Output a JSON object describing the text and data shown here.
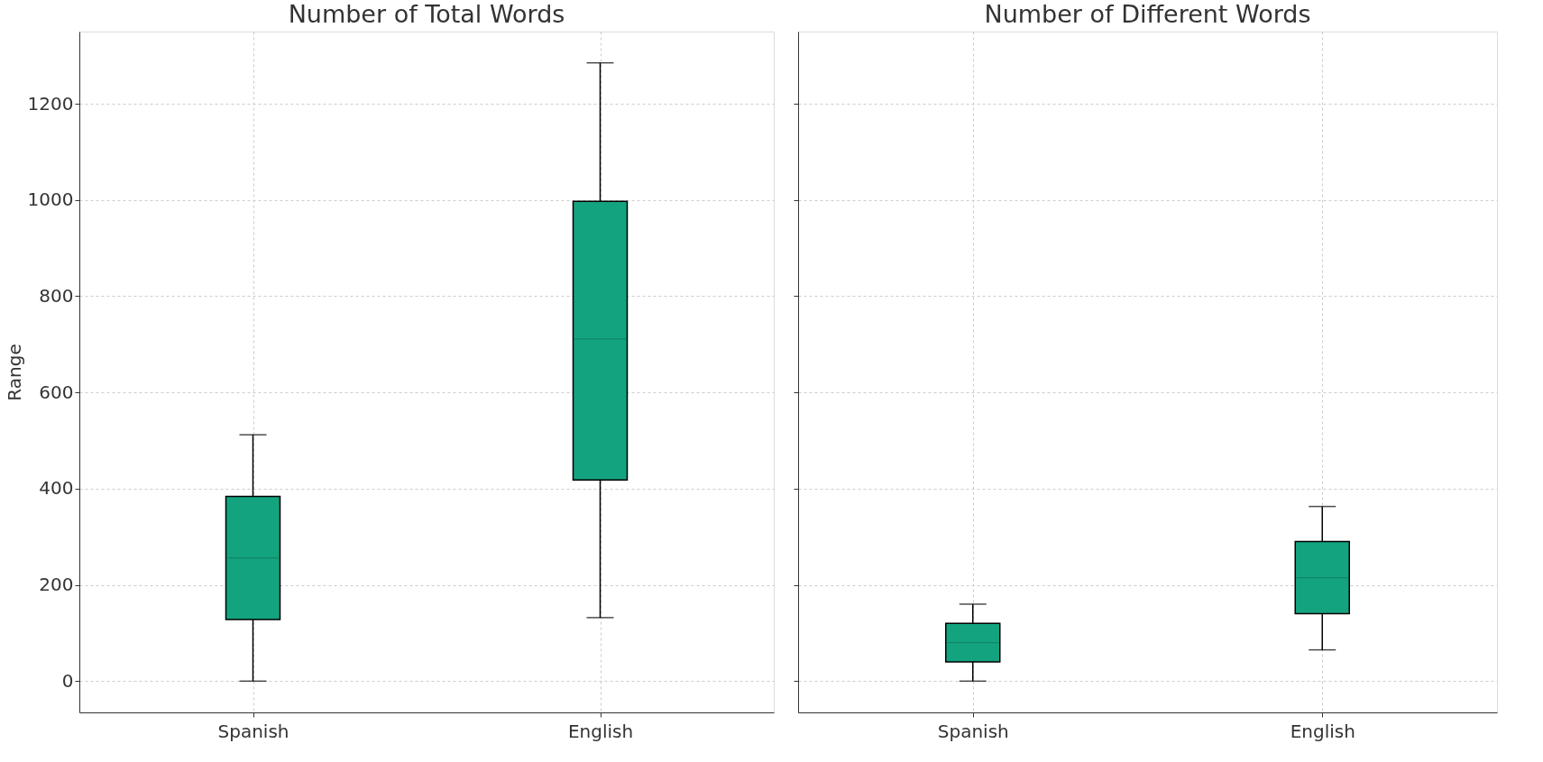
{
  "chart_data": [
    {
      "type": "box",
      "title": "Number of Total Words",
      "ylabel": "Range",
      "categories": [
        "Spanish",
        "English"
      ],
      "ylim": [
        -65,
        1350
      ],
      "yticks": [
        0,
        200,
        400,
        600,
        800,
        1000,
        1200
      ],
      "grid": true,
      "series": [
        {
          "color": "#14a37f",
          "boxes": [
            {
              "low": 0,
              "q1": 128,
              "median": 256,
              "q3": 384,
              "high": 512
            },
            {
              "low": 132,
              "q1": 418,
              "median": 711,
              "q3": 997,
              "high": 1285
            }
          ]
        }
      ]
    },
    {
      "type": "box",
      "title": "Number of Different Words",
      "categories": [
        "Spanish",
        "English"
      ],
      "ylim": [
        -65,
        1350
      ],
      "yticks": [
        0,
        200,
        400,
        600,
        800,
        1000,
        1200
      ],
      "grid": true,
      "tick_labels": "x",
      "series": [
        {
          "color": "#14a37f",
          "boxes": [
            {
              "low": 0,
              "q1": 40,
              "median": 80,
              "q3": 120,
              "high": 160
            },
            {
              "low": 65,
              "q1": 140,
              "median": 215,
              "q3": 290,
              "high": 363
            }
          ]
        }
      ]
    }
  ]
}
